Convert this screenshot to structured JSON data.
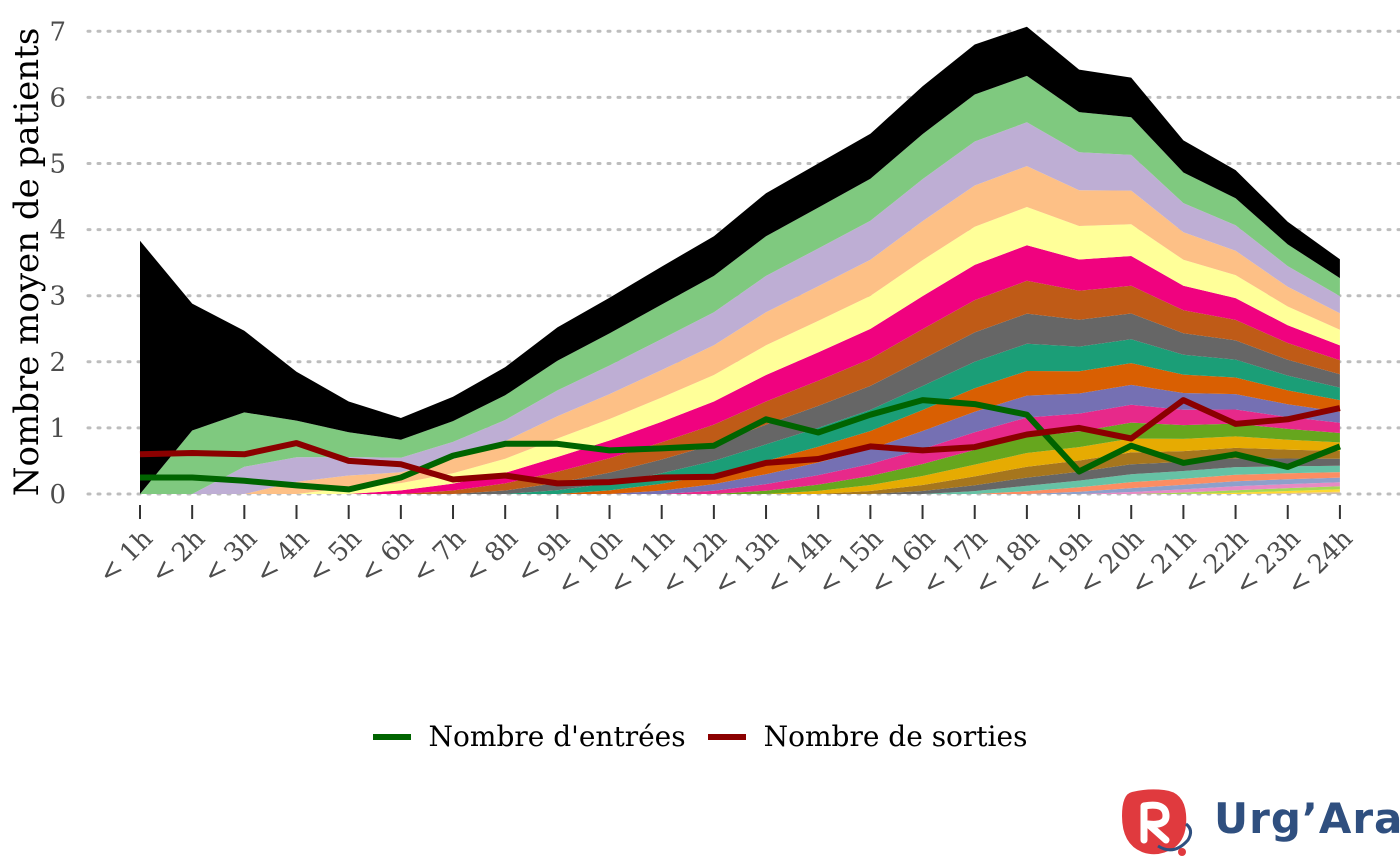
{
  "chart_data": {
    "type": "area",
    "ylabel": "Nombre moyen de patients",
    "ylim": [
      0,
      7.15
    ],
    "yticks": [
      0,
      1,
      2,
      3,
      4,
      5,
      6,
      7
    ],
    "grid": "horizontal dotted",
    "legend_placement": "bottom",
    "categories": [
      "< 1h",
      "< 2h",
      "< 3h",
      "< 4h",
      "< 5h",
      "< 6h",
      "< 7h",
      "< 8h",
      "< 9h",
      "< 10h",
      "< 11h",
      "< 12h",
      "< 13h",
      "< 14h",
      "< 15h",
      "< 16h",
      "< 17h",
      "< 18h",
      "< 19h",
      "< 20h",
      "< 21h",
      "< 22h",
      "< 23h",
      "< 24h"
    ],
    "stack_colors": [
      "#b3b3b3",
      "#e5c494",
      "#ffd92f",
      "#a6d854",
      "#e78ac3",
      "#8da0cb",
      "#fc8d62",
      "#66c2a5",
      "#666666",
      "#a6761d",
      "#e6ab02",
      "#66a61e",
      "#e7298a",
      "#7570b3",
      "#d95f02",
      "#1b9e77",
      "#666666",
      "#bf5b17",
      "#f0027f",
      "#ffff99",
      "#fdc086",
      "#beaed4",
      "#7fc97f",
      "#000000"
    ],
    "stack_totals": [
      3.83,
      2.88,
      2.47,
      1.85,
      1.4,
      1.15,
      1.47,
      1.92,
      2.52,
      2.97,
      3.44,
      3.9,
      4.55,
      5.0,
      5.45,
      6.17,
      6.8,
      7.07,
      6.42,
      6.3,
      5.35,
      4.9,
      4.12,
      3.55
    ],
    "lines": [
      {
        "name": "Nombre d'entrées",
        "color": "#006400",
        "values": [
          0.25,
          0.25,
          0.2,
          0.13,
          0.07,
          0.25,
          0.58,
          0.76,
          0.76,
          0.66,
          0.69,
          0.73,
          1.13,
          0.93,
          1.2,
          1.42,
          1.36,
          1.2,
          0.34,
          0.73,
          0.47,
          0.6,
          0.41,
          0.72
        ]
      },
      {
        "name": "Nombre de sorties",
        "color": "#8b0000",
        "values": [
          0.6,
          0.62,
          0.6,
          0.77,
          0.5,
          0.45,
          0.22,
          0.28,
          0.16,
          0.18,
          0.25,
          0.26,
          0.47,
          0.53,
          0.72,
          0.66,
          0.71,
          0.9,
          1.0,
          0.84,
          1.42,
          1.06,
          1.13,
          1.3
        ]
      }
    ]
  },
  "logo": {
    "text": "Urg’Ara",
    "color": "#2f4f7f",
    "accent": "#e03a3e"
  }
}
